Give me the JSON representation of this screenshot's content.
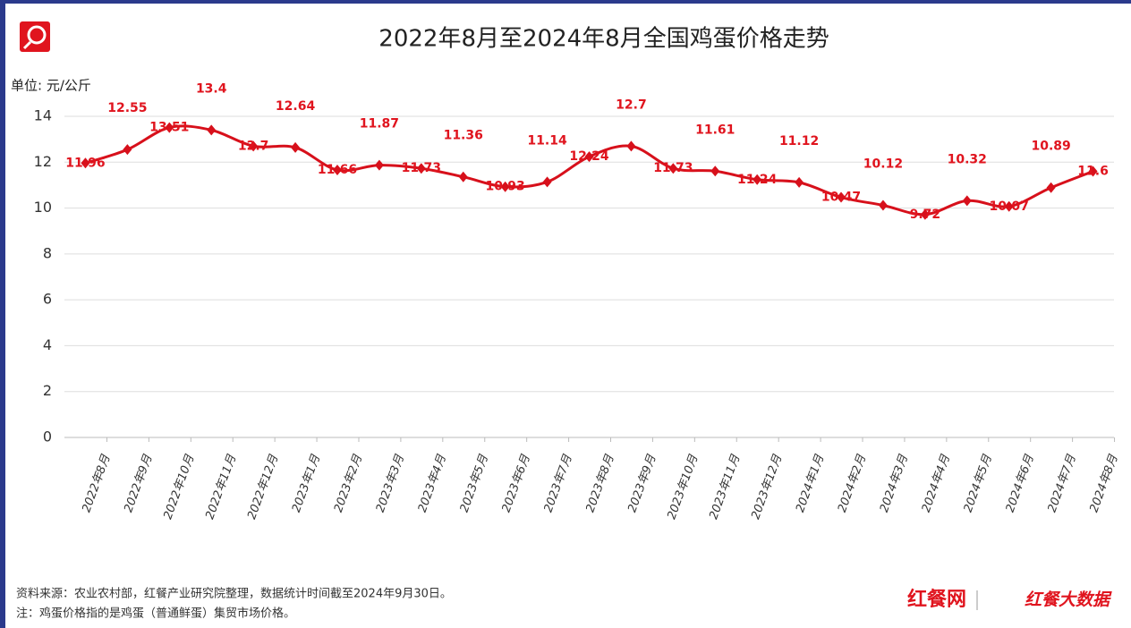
{
  "chart_data": {
    "type": "line",
    "title": "2022年8月至2024年8月全国鸡蛋价格走势",
    "y_label": "单位: 元/公斤",
    "categories": [
      "2022年8月",
      "2022年9月",
      "2022年10月",
      "2022年11月",
      "2022年12月",
      "2023年1月",
      "2023年2月",
      "2023年3月",
      "2023年4月",
      "2023年5月",
      "2023年6月",
      "2023年7月",
      "2023年8月",
      "2023年9月",
      "2023年10月",
      "2023年11月",
      "2023年12月",
      "2024年1月",
      "2024年2月",
      "2024年3月",
      "2024年4月",
      "2024年5月",
      "2024年6月",
      "2024年7月",
      "2024年8月"
    ],
    "series": [
      {
        "name": "鸡蛋价格",
        "color": "#d7101b",
        "values": [
          11.96,
          12.55,
          13.51,
          13.4,
          12.7,
          12.64,
          11.66,
          11.87,
          11.73,
          11.36,
          10.93,
          11.14,
          12.24,
          12.7,
          11.73,
          11.61,
          11.24,
          11.12,
          10.47,
          10.12,
          9.72,
          10.32,
          10.07,
          10.89,
          11.6
        ]
      }
    ],
    "ylim": [
      0,
      14
    ],
    "yticks": [
      0,
      2,
      4,
      6,
      8,
      10,
      12,
      14
    ],
    "grid": true,
    "source": "资料来源：农业农村部，红餐产业研究院整理，数据统计时间截至2024年9月30日。",
    "note": "注：鸡蛋价格指的是鸡蛋（普通鲜蛋）集贸市场价格。",
    "brand": "红餐网",
    "brand2": "红餐大数据"
  }
}
